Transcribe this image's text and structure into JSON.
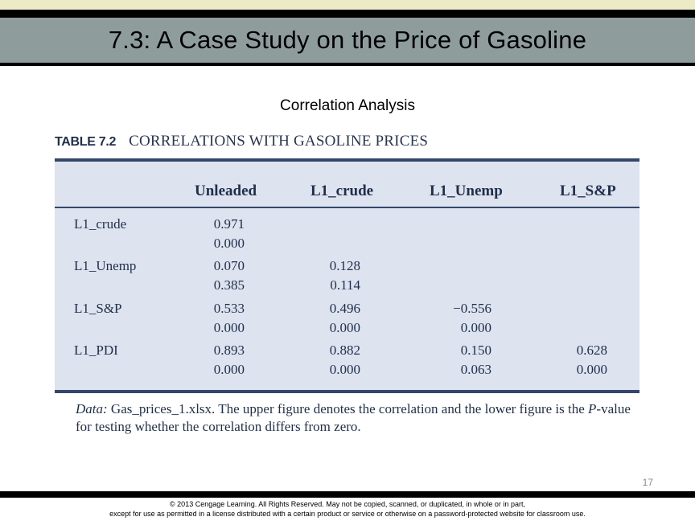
{
  "slide": {
    "title": "7.3: A Case Study on the Price of Gasoline",
    "subtitle": "Correlation Analysis",
    "page_number": "17"
  },
  "table": {
    "number": "TABLE 7.2",
    "caption": "CORRELATIONS WITH GASOLINE PRICES",
    "columns": [
      "Unleaded",
      "L1_crude",
      "L1_Unemp",
      "L1_S&P"
    ],
    "rows": [
      {
        "label": "L1_crude",
        "cells": [
          {
            "corr": "0.971",
            "p": "0.000"
          },
          null,
          null,
          null
        ]
      },
      {
        "label": "L1_Unemp",
        "cells": [
          {
            "corr": "0.070",
            "p": "0.385"
          },
          {
            "corr": "0.128",
            "p": "0.114"
          },
          null,
          null
        ]
      },
      {
        "label": "L1_S&P",
        "cells": [
          {
            "corr": "0.533",
            "p": "0.000"
          },
          {
            "corr": "0.496",
            "p": "0.000"
          },
          {
            "corr": "−0.556",
            "p": "0.000"
          },
          null
        ]
      },
      {
        "label": "L1_PDI",
        "cells": [
          {
            "corr": "0.893",
            "p": "0.000"
          },
          {
            "corr": "0.882",
            "p": "0.000"
          },
          {
            "corr": "0.150",
            "p": "0.063"
          },
          {
            "corr": "0.628",
            "p": "0.000"
          }
        ]
      }
    ],
    "note_lead": "Data:",
    "note_file": " Gas_prices_1.xlsx. The upper figure denotes the correlation and the lower figure is the ",
    "note_pvalue": "P",
    "note_tail": "-value for testing whether the correlation differs from zero."
  },
  "footer": {
    "line1": "© 2013 Cengage Learning. All Rights Reserved. May not be copied, scanned, or duplicated, in whole or in part,",
    "line2": "except for use as permitted in a license distributed with a certain product or service or otherwise on a password-protected website for classroom use."
  },
  "colors": {
    "title_band": "#8e9d9c",
    "top_strip": "#ecebc6",
    "table_fill": "#dde3ef",
    "table_rule": "#33476b"
  }
}
